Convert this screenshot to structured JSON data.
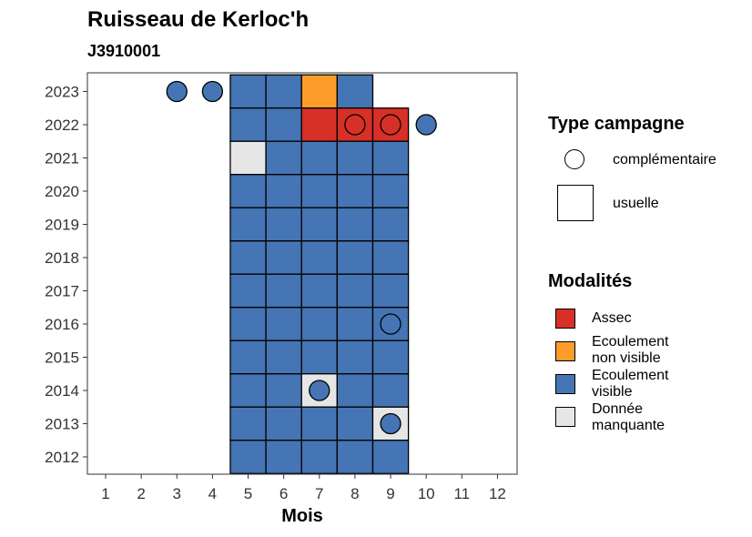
{
  "title": "Ruisseau de Kerloc'h",
  "subtitle": "J3910001",
  "colors": {
    "Assec": "#D73027",
    "Ecoulement non visible": "#FC9D2A",
    "Ecoulement visible": "#4575B4",
    "Donnée manquante": "#E6E6E6"
  },
  "legend": {
    "campagne_title": "Type campagne",
    "campagne_items": [
      {
        "shape": "circle",
        "label": "complémentaire"
      },
      {
        "shape": "square",
        "label": "usuelle"
      }
    ],
    "modalites_title": "Modalités",
    "modalites_items": [
      {
        "label": "Assec",
        "color": "#D73027"
      },
      {
        "label": "Ecoulement\nnon visible",
        "color": "#FC9D2A"
      },
      {
        "label": "Ecoulement\nvisible",
        "color": "#4575B4"
      },
      {
        "label": "Donnée\nmanquante",
        "color": "#E6E6E6"
      }
    ]
  },
  "chart_data": {
    "type": "heatmap",
    "title": "Ruisseau de Kerloc'h",
    "subtitle": "J3910001",
    "xlabel": "Mois",
    "ylabel": "",
    "x_ticks": [
      1,
      2,
      3,
      4,
      5,
      6,
      7,
      8,
      9,
      10,
      11,
      12
    ],
    "y_ticks": [
      2012,
      2013,
      2014,
      2015,
      2016,
      2017,
      2018,
      2019,
      2020,
      2021,
      2022,
      2023
    ],
    "grid": false,
    "legend_position": "right",
    "usuelle": [
      {
        "year": 2023,
        "months": {
          "5": "Ecoulement visible",
          "6": "Ecoulement visible",
          "7": "Ecoulement non visible",
          "8": "Ecoulement visible"
        }
      },
      {
        "year": 2022,
        "months": {
          "5": "Ecoulement visible",
          "6": "Ecoulement visible",
          "7": "Assec",
          "8": "Assec",
          "9": "Assec"
        }
      },
      {
        "year": 2021,
        "months": {
          "5": "Donnée manquante",
          "6": "Ecoulement visible",
          "7": "Ecoulement visible",
          "8": "Ecoulement visible",
          "9": "Ecoulement visible"
        }
      },
      {
        "year": 2020,
        "months": {
          "5": "Ecoulement visible",
          "6": "Ecoulement visible",
          "7": "Ecoulement visible",
          "8": "Ecoulement visible",
          "9": "Ecoulement visible"
        }
      },
      {
        "year": 2019,
        "months": {
          "5": "Ecoulement visible",
          "6": "Ecoulement visible",
          "7": "Ecoulement visible",
          "8": "Ecoulement visible",
          "9": "Ecoulement visible"
        }
      },
      {
        "year": 2018,
        "months": {
          "5": "Ecoulement visible",
          "6": "Ecoulement visible",
          "7": "Ecoulement visible",
          "8": "Ecoulement visible",
          "9": "Ecoulement visible"
        }
      },
      {
        "year": 2017,
        "months": {
          "5": "Ecoulement visible",
          "6": "Ecoulement visible",
          "7": "Ecoulement visible",
          "8": "Ecoulement visible",
          "9": "Ecoulement visible"
        }
      },
      {
        "year": 2016,
        "months": {
          "5": "Ecoulement visible",
          "6": "Ecoulement visible",
          "7": "Ecoulement visible",
          "8": "Ecoulement visible",
          "9": "Ecoulement visible"
        }
      },
      {
        "year": 2015,
        "months": {
          "5": "Ecoulement visible",
          "6": "Ecoulement visible",
          "7": "Ecoulement visible",
          "8": "Ecoulement visible",
          "9": "Ecoulement visible"
        }
      },
      {
        "year": 2014,
        "months": {
          "5": "Ecoulement visible",
          "6": "Ecoulement visible",
          "7": "Donnée manquante",
          "8": "Ecoulement visible",
          "9": "Ecoulement visible"
        }
      },
      {
        "year": 2013,
        "months": {
          "5": "Ecoulement visible",
          "6": "Ecoulement visible",
          "7": "Ecoulement visible",
          "8": "Ecoulement visible",
          "9": "Donnée manquante"
        }
      },
      {
        "year": 2012,
        "months": {
          "5": "Ecoulement visible",
          "6": "Ecoulement visible",
          "7": "Ecoulement visible",
          "8": "Ecoulement visible",
          "9": "Ecoulement visible"
        }
      }
    ],
    "complementaire": [
      {
        "year": 2023,
        "month": 3,
        "value": "Ecoulement visible"
      },
      {
        "year": 2023,
        "month": 4,
        "value": "Ecoulement visible"
      },
      {
        "year": 2022,
        "month": 8,
        "value": "Assec"
      },
      {
        "year": 2022,
        "month": 9,
        "value": "Assec"
      },
      {
        "year": 2022,
        "month": 10,
        "value": "Ecoulement visible"
      },
      {
        "year": 2016,
        "month": 9,
        "value": "Ecoulement visible"
      },
      {
        "year": 2014,
        "month": 7,
        "value": "Ecoulement visible"
      },
      {
        "year": 2013,
        "month": 9,
        "value": "Ecoulement visible"
      }
    ]
  }
}
